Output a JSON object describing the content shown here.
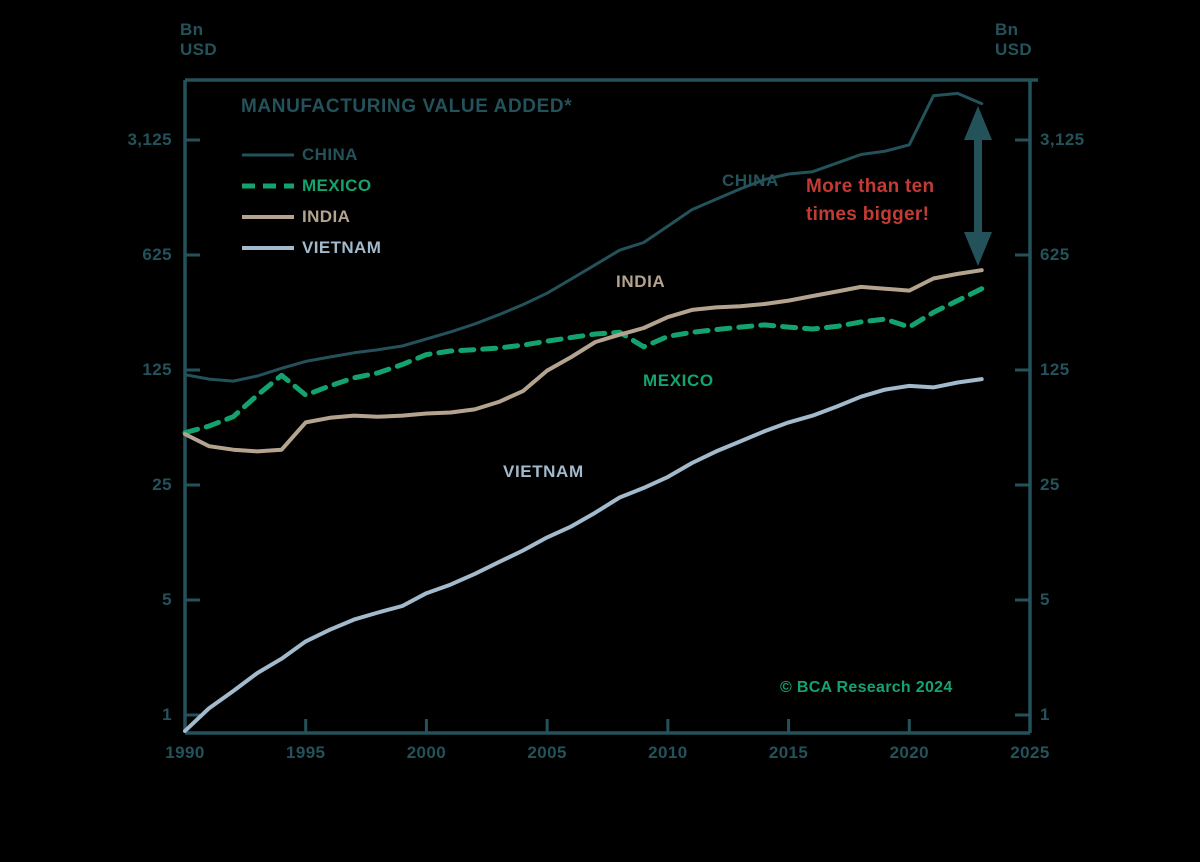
{
  "header": {
    "unit_left": {
      "line1": "Bn",
      "line2": "USD"
    },
    "unit_right": {
      "line1": "Bn",
      "line2": "USD"
    }
  },
  "title": "MANUFACTURING VALUE ADDED*",
  "legend": [
    {
      "label": "CHINA",
      "color": "#24525a",
      "dashed": false
    },
    {
      "label": "MEXICO",
      "color": "#14a36f",
      "dashed": true
    },
    {
      "label": "INDIA",
      "color": "#b4a48f",
      "dashed": false
    },
    {
      "label": "VIETNAM",
      "color": "#a2bacb",
      "dashed": false
    }
  ],
  "annotation": {
    "line1": "More than ten",
    "line2": "times bigger!",
    "color": "#c23b35"
  },
  "credit": {
    "text": "© BCA Research 2024",
    "color": "#14a36f"
  },
  "axis": {
    "x_labels": [
      "1990",
      "1995",
      "2000",
      "2005",
      "2010",
      "2015",
      "2020",
      "2025"
    ],
    "y_labels_left": [
      "3,125",
      "625",
      "125",
      "25",
      "5",
      "1"
    ],
    "y_labels_right": [
      "3,125",
      "625",
      "125",
      "25",
      "5",
      "1"
    ]
  },
  "chart_data": {
    "type": "line",
    "title": "MANUFACTURING VALUE ADDED*",
    "ylabel": "Bn USD",
    "y_scale": "logarithmic (factor 5 between ticks)",
    "y_tick_values": [
      3125,
      625,
      125,
      25,
      5,
      1
    ],
    "x_tick_years": [
      1990,
      1995,
      2000,
      2005,
      2010,
      2015,
      2020,
      2025
    ],
    "x_range": [
      1990,
      2025
    ],
    "ylim": [
      0.75,
      7000
    ],
    "grid": false,
    "legend_position": "upper-left",
    "annotation": "More than ten times bigger! (China vs. the others at the end of the series)",
    "years": [
      1990,
      1991,
      1992,
      1993,
      1994,
      1995,
      1996,
      1997,
      1998,
      1999,
      2000,
      2001,
      2002,
      2003,
      2004,
      2005,
      2006,
      2007,
      2008,
      2009,
      2010,
      2011,
      2012,
      2013,
      2014,
      2015,
      2016,
      2017,
      2018,
      2019,
      2020,
      2021,
      2022,
      2023
    ],
    "series": [
      {
        "name": "CHINA",
        "color": "#24525a",
        "dashed": false,
        "width": 3,
        "values": [
          117,
          110,
          107,
          115,
          128,
          141,
          150,
          159,
          166,
          175,
          193,
          213,
          238,
          271,
          312,
          366,
          447,
          546,
          668,
          744,
          937,
          1180,
          1364,
          1577,
          1796,
          1943,
          2005,
          2261,
          2551,
          2671,
          2924,
          5800,
          6000,
          5200
        ]
      },
      {
        "name": "MEXICO",
        "color": "#14a36f",
        "dashed": true,
        "width": 5,
        "values": [
          52,
          57,
          65,
          88,
          116,
          88,
          100,
          112,
          120,
          135,
          155,
          163,
          166,
          170,
          177,
          187,
          197,
          207,
          212,
          173,
          200,
          212,
          220,
          228,
          235,
          228,
          222,
          230,
          245,
          255,
          228,
          280,
          330,
          390
        ]
      },
      {
        "name": "INDIA",
        "color": "#b4a48f",
        "dashed": false,
        "width": 4,
        "values": [
          51,
          43,
          41,
          40,
          41,
          60,
          64,
          66,
          65,
          66,
          68,
          69,
          72,
          80,
          93,
          124,
          150,
          185,
          205,
          225,
          262,
          290,
          300,
          305,
          315,
          330,
          352,
          375,
          400,
          390,
          380,
          450,
          480,
          505
        ]
      },
      {
        "name": "VIETNAM",
        "color": "#a2bacb",
        "dashed": false,
        "width": 4,
        "values": [
          0.8,
          1.1,
          1.4,
          1.8,
          2.2,
          2.8,
          3.3,
          3.8,
          4.2,
          4.6,
          5.5,
          6.2,
          7.2,
          8.5,
          10,
          12,
          14,
          17,
          21,
          24,
          28,
          34,
          40,
          46,
          53,
          60,
          66,
          75,
          86,
          95,
          100,
          98,
          105,
          110
        ]
      }
    ]
  }
}
